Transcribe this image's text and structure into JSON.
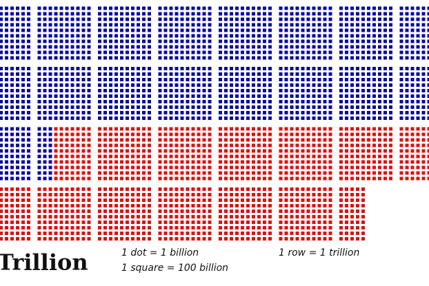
{
  "title": "Trillion",
  "legend": [
    "1 dot = 1 billion",
    "1 square = 100 billion",
    "1 row = 1 trillion"
  ],
  "blue_billions": 2130,
  "blue_color": "#0a0aa0",
  "red_billions": 1520,
  "red_color": "#e01010"
}
